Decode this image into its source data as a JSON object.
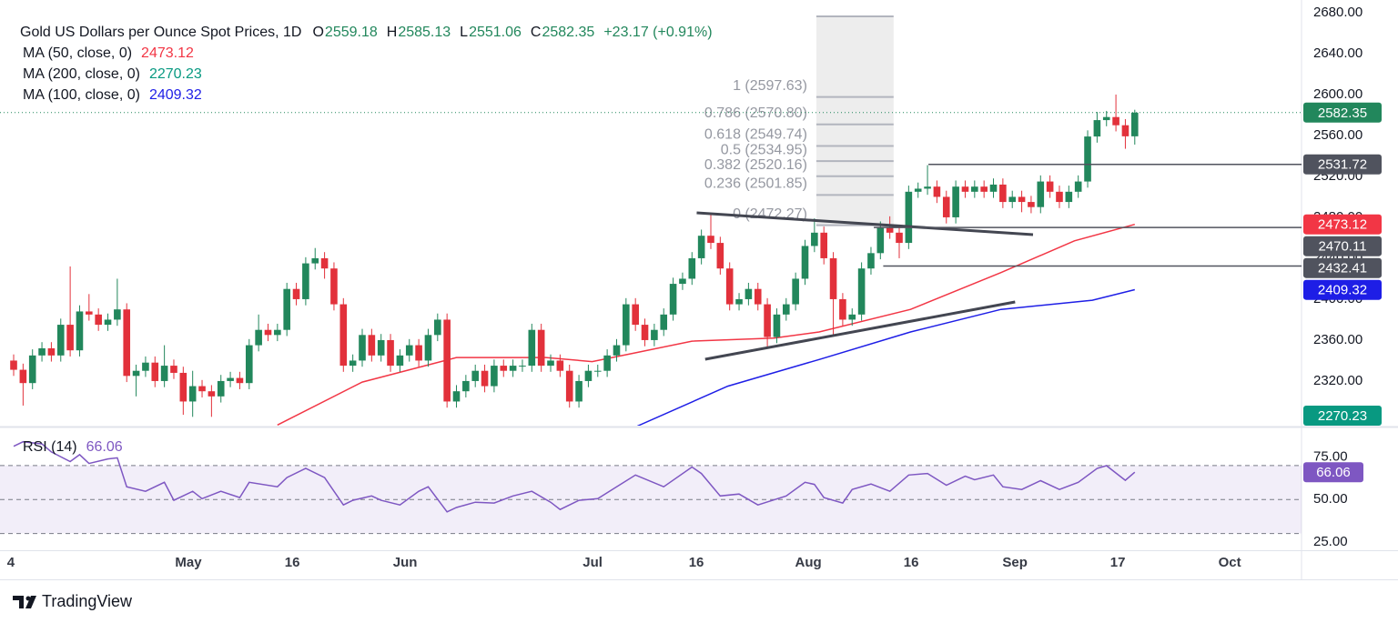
{
  "chart_data": {
    "type": "candlestick",
    "title": "Gold US Dollars per Ounce Spot Prices, 1D",
    "ohlc_prefixes": [
      "O",
      "H",
      "L",
      "C"
    ],
    "change_label": "+23.17 (+0.91%)",
    "up_color": "#22875c",
    "down_color": "#e2313b",
    "candles": {
      "open": [
        2340,
        2331,
        2318,
        2345,
        2352,
        2345,
        2375,
        2350,
        2388,
        2385,
        2375,
        2380,
        2390,
        2325,
        2330,
        2338,
        2320,
        2335,
        2328,
        2300,
        2315,
        2310,
        2305,
        2320,
        2323,
        2318,
        2355,
        2370,
        2365,
        2370,
        2410,
        2400,
        2435,
        2440,
        2430,
        2395,
        2335,
        2340,
        2365,
        2345,
        2360,
        2335,
        2345,
        2355,
        2340,
        2365,
        2380,
        2300,
        2310,
        2320,
        2330,
        2315,
        2335,
        2330,
        2335,
        2335,
        2370,
        2335,
        2340,
        2330,
        2300,
        2320,
        2330,
        2330,
        2345,
        2355,
        2395,
        2375,
        2360,
        2370,
        2385,
        2415,
        2420,
        2440,
        2462,
        2455,
        2430,
        2395,
        2400,
        2410,
        2395,
        2363,
        2385,
        2395,
        2420,
        2452,
        2465,
        2440,
        2400,
        2380,
        2385,
        2430,
        2445,
        2470,
        2465,
        2455,
        2505,
        2508,
        2510,
        2500,
        2480,
        2510,
        2505,
        2510,
        2505,
        2512,
        2495,
        2500,
        2495,
        2490,
        2515,
        2505,
        2495,
        2505,
        2515,
        2559,
        2575,
        2578,
        2570,
        2559.18
      ],
      "high": [
        2346,
        2337,
        2351,
        2358,
        2358,
        2381,
        2432,
        2394,
        2405,
        2391,
        2386,
        2420,
        2396,
        2336,
        2344,
        2344,
        2355,
        2341,
        2334,
        2330,
        2321,
        2316,
        2326,
        2329,
        2329,
        2361,
        2385,
        2376,
        2376,
        2416,
        2416,
        2441,
        2450,
        2446,
        2436,
        2401,
        2346,
        2371,
        2371,
        2366,
        2366,
        2351,
        2361,
        2361,
        2371,
        2386,
        2386,
        2316,
        2326,
        2336,
        2336,
        2341,
        2341,
        2341,
        2341,
        2376,
        2376,
        2346,
        2346,
        2336,
        2326,
        2336,
        2336,
        2351,
        2361,
        2401,
        2401,
        2381,
        2376,
        2391,
        2421,
        2426,
        2446,
        2468,
        2483,
        2461,
        2436,
        2406,
        2416,
        2416,
        2401,
        2391,
        2401,
        2426,
        2458,
        2479,
        2471,
        2446,
        2406,
        2391,
        2436,
        2451,
        2476,
        2481,
        2471,
        2511,
        2514,
        2531,
        2516,
        2506,
        2516,
        2516,
        2516,
        2516,
        2518,
        2518,
        2506,
        2506,
        2501,
        2521,
        2521,
        2511,
        2511,
        2521,
        2565,
        2583,
        2584,
        2600,
        2576,
        2585.13
      ],
      "low": [
        2325,
        2296,
        2312,
        2339,
        2339,
        2339,
        2344,
        2344,
        2379,
        2369,
        2369,
        2374,
        2319,
        2305,
        2324,
        2314,
        2314,
        2322,
        2287,
        2285,
        2304,
        2285,
        2299,
        2314,
        2312,
        2312,
        2349,
        2359,
        2359,
        2364,
        2394,
        2394,
        2429,
        2420,
        2389,
        2329,
        2329,
        2334,
        2339,
        2339,
        2329,
        2329,
        2339,
        2334,
        2334,
        2359,
        2294,
        2294,
        2304,
        2314,
        2309,
        2309,
        2324,
        2324,
        2329,
        2329,
        2329,
        2329,
        2324,
        2294,
        2294,
        2314,
        2324,
        2324,
        2339,
        2349,
        2369,
        2354,
        2354,
        2364,
        2379,
        2409,
        2414,
        2434,
        2449,
        2424,
        2389,
        2389,
        2394,
        2389,
        2353,
        2357,
        2379,
        2389,
        2414,
        2446,
        2434,
        2365,
        2374,
        2374,
        2379,
        2424,
        2439,
        2459,
        2440,
        2449,
        2499,
        2502,
        2494,
        2474,
        2474,
        2499,
        2499,
        2499,
        2499,
        2489,
        2489,
        2485,
        2484,
        2484,
        2499,
        2489,
        2489,
        2499,
        2509,
        2553,
        2569,
        2564,
        2547,
        2551.06
      ],
      "close": [
        2331,
        2318,
        2345,
        2352,
        2345,
        2375,
        2350,
        2388,
        2385,
        2375,
        2380,
        2390,
        2325,
        2330,
        2338,
        2320,
        2335,
        2328,
        2300,
        2315,
        2310,
        2305,
        2320,
        2323,
        2318,
        2355,
        2370,
        2365,
        2370,
        2410,
        2400,
        2435,
        2440,
        2430,
        2395,
        2335,
        2340,
        2365,
        2345,
        2360,
        2335,
        2345,
        2355,
        2340,
        2365,
        2380,
        2300,
        2310,
        2320,
        2330,
        2315,
        2335,
        2330,
        2335,
        2335,
        2370,
        2335,
        2340,
        2330,
        2300,
        2320,
        2330,
        2330,
        2345,
        2355,
        2395,
        2375,
        2360,
        2370,
        2385,
        2415,
        2420,
        2440,
        2462,
        2455,
        2430,
        2395,
        2400,
        2410,
        2395,
        2363,
        2385,
        2395,
        2420,
        2452,
        2465,
        2440,
        2400,
        2380,
        2385,
        2430,
        2445,
        2470,
        2465,
        2455,
        2505,
        2508,
        2510,
        2500,
        2480,
        2510,
        2505,
        2510,
        2505,
        2512,
        2495,
        2500,
        2495,
        2490,
        2515,
        2505,
        2495,
        2505,
        2515,
        2559,
        2575,
        2578,
        2570,
        2559.18,
        2582.35
      ]
    },
    "moving_averages": [
      {
        "name": "MA (50, close, 0)",
        "color": "#f23645",
        "x": [
          28,
          37,
          47,
          56.5,
          61.4,
          66.2,
          72,
          80.7,
          85.5,
          95.2,
          104.8,
          112.6,
          119
        ],
        "values": [
          2277,
          2319,
          2343,
          2343,
          2339,
          2348,
          2359,
          2362,
          2368,
          2390,
          2426,
          2457,
          2473.12
        ]
      },
      {
        "name": "MA (200, close, 0)",
        "color": "#089981",
        "x": [
          119
        ],
        "values": [
          2270.23
        ]
      },
      {
        "name": "MA (100, close, 0)",
        "color": "#1e1ee6",
        "x": [
          66.2,
          75.8,
          85.5,
          95.2,
          104.8,
          114.5,
          119
        ],
        "values": [
          2276,
          2315,
          2341,
          2368,
          2390,
          2399,
          2409.32
        ]
      }
    ],
    "ylim": [
      2276.4,
      2692.4
    ],
    "yticks": [
      {
        "value": 2320,
        "label": "2320.00"
      },
      {
        "value": 2360,
        "label": "2360.00"
      },
      {
        "value": 2400,
        "label": "2400.00"
      },
      {
        "value": 2440,
        "label": "2440.00"
      },
      {
        "value": 2480,
        "label": "2480.00"
      },
      {
        "value": 2520,
        "label": "2520.00"
      },
      {
        "value": 2560,
        "label": "2560.00"
      },
      {
        "value": 2600,
        "label": "2600.00"
      },
      {
        "value": 2640,
        "label": "2640.00"
      },
      {
        "value": 2680,
        "label": "2680.00"
      }
    ],
    "xlim": [
      -1.45,
      136.7
    ],
    "xticks": [
      {
        "value": -0.3,
        "label": "4"
      },
      {
        "value": 18.55,
        "label": "May"
      },
      {
        "value": 29.57,
        "label": "16"
      },
      {
        "value": 41.55,
        "label": "Jun"
      },
      {
        "value": 61.45,
        "label": "Jul"
      },
      {
        "value": 72.46,
        "label": "16"
      },
      {
        "value": 84.35,
        "label": "Aug"
      },
      {
        "value": 95.27,
        "label": "16"
      },
      {
        "value": 106.28,
        "label": "Sep"
      },
      {
        "value": 117.2,
        "label": "17"
      },
      {
        "value": 129.08,
        "label": "Oct"
      }
    ],
    "fib": {
      "top": 2676.4,
      "x": [
        85.2,
        93.4
      ],
      "levels": [
        {
          "value": 2597.63,
          "label": "1 (2597.63)"
        },
        {
          "value": 2570.8,
          "label": "0.786 (2570.80)"
        },
        {
          "value": 2549.74,
          "label": "0.618 (2549.74)"
        },
        {
          "value": 2534.95,
          "label": "0.5 (2534.95)"
        },
        {
          "value": 2520.16,
          "label": "0.382 (2520.16)"
        },
        {
          "value": 2501.85,
          "label": "0.236 (2501.85)"
        },
        {
          "value": 2472.27,
          "label": "0 (2472.27)"
        }
      ]
    },
    "trendlines": [
      {
        "x": [
          72.5,
          108.2
        ],
        "values": [
          2484.4,
          2463.1
        ]
      },
      {
        "x": [
          73.4,
          106.3
        ],
        "values": [
          2341.3,
          2397.3
        ]
      }
    ],
    "hlines": [
      {
        "x": 97.1,
        "value": 2531.72
      },
      {
        "x": 91.3,
        "value": 2470.11
      },
      {
        "x": 92.3,
        "value": 2432.41
      }
    ],
    "rsi": {
      "type": "line",
      "name": "RSI (14)",
      "color": "#7e57c2",
      "x": [
        0,
        1,
        3,
        4,
        6,
        7,
        8,
        10,
        11,
        12,
        14,
        16,
        17,
        19,
        20,
        22,
        24,
        25,
        28,
        29,
        31,
        33,
        35,
        36,
        38,
        39,
        41,
        43,
        44,
        46,
        47,
        49,
        51,
        53,
        55,
        57,
        58,
        60,
        62,
        64,
        66,
        69,
        72,
        73,
        75,
        77,
        79,
        82,
        84,
        85,
        86,
        88,
        89,
        91,
        93,
        95,
        97,
        99,
        101,
        102,
        104,
        105,
        107,
        109,
        111,
        113,
        115,
        116,
        117,
        118,
        119
      ],
      "values": [
        81.3,
        84,
        82.7,
        78,
        72.3,
        76.4,
        71.2,
        73.9,
        74.5,
        57.5,
        54.8,
        60.1,
        49.5,
        54.8,
        50.5,
        54.8,
        51.1,
        60.1,
        57.5,
        62.9,
        68.3,
        62.9,
        46.8,
        49.5,
        52.1,
        49.5,
        46.8,
        54.8,
        57.5,
        42.7,
        45.3,
        48.4,
        47.9,
        52.1,
        54.8,
        48.4,
        44.1,
        49.5,
        50.5,
        57.5,
        64.4,
        57.5,
        69.1,
        65.3,
        52.1,
        53.2,
        46.8,
        52.1,
        60.1,
        58.9,
        51.1,
        47.9,
        55.9,
        59.1,
        54.8,
        64.4,
        65.3,
        58.4,
        63.7,
        61.6,
        64.4,
        57.5,
        55.9,
        61.1,
        55.9,
        60.1,
        68.3,
        69.9,
        65.6,
        61.3,
        66.06
      ],
      "ylim": [
        20.13,
        92.4
      ],
      "yticks": [
        {
          "value": 25,
          "label": "25.00"
        },
        {
          "value": 50,
          "label": "50.00"
        },
        {
          "value": 75,
          "label": "75.00"
        }
      ],
      "bands": [
        70,
        50,
        30
      ]
    }
  },
  "brand": "TradingView"
}
